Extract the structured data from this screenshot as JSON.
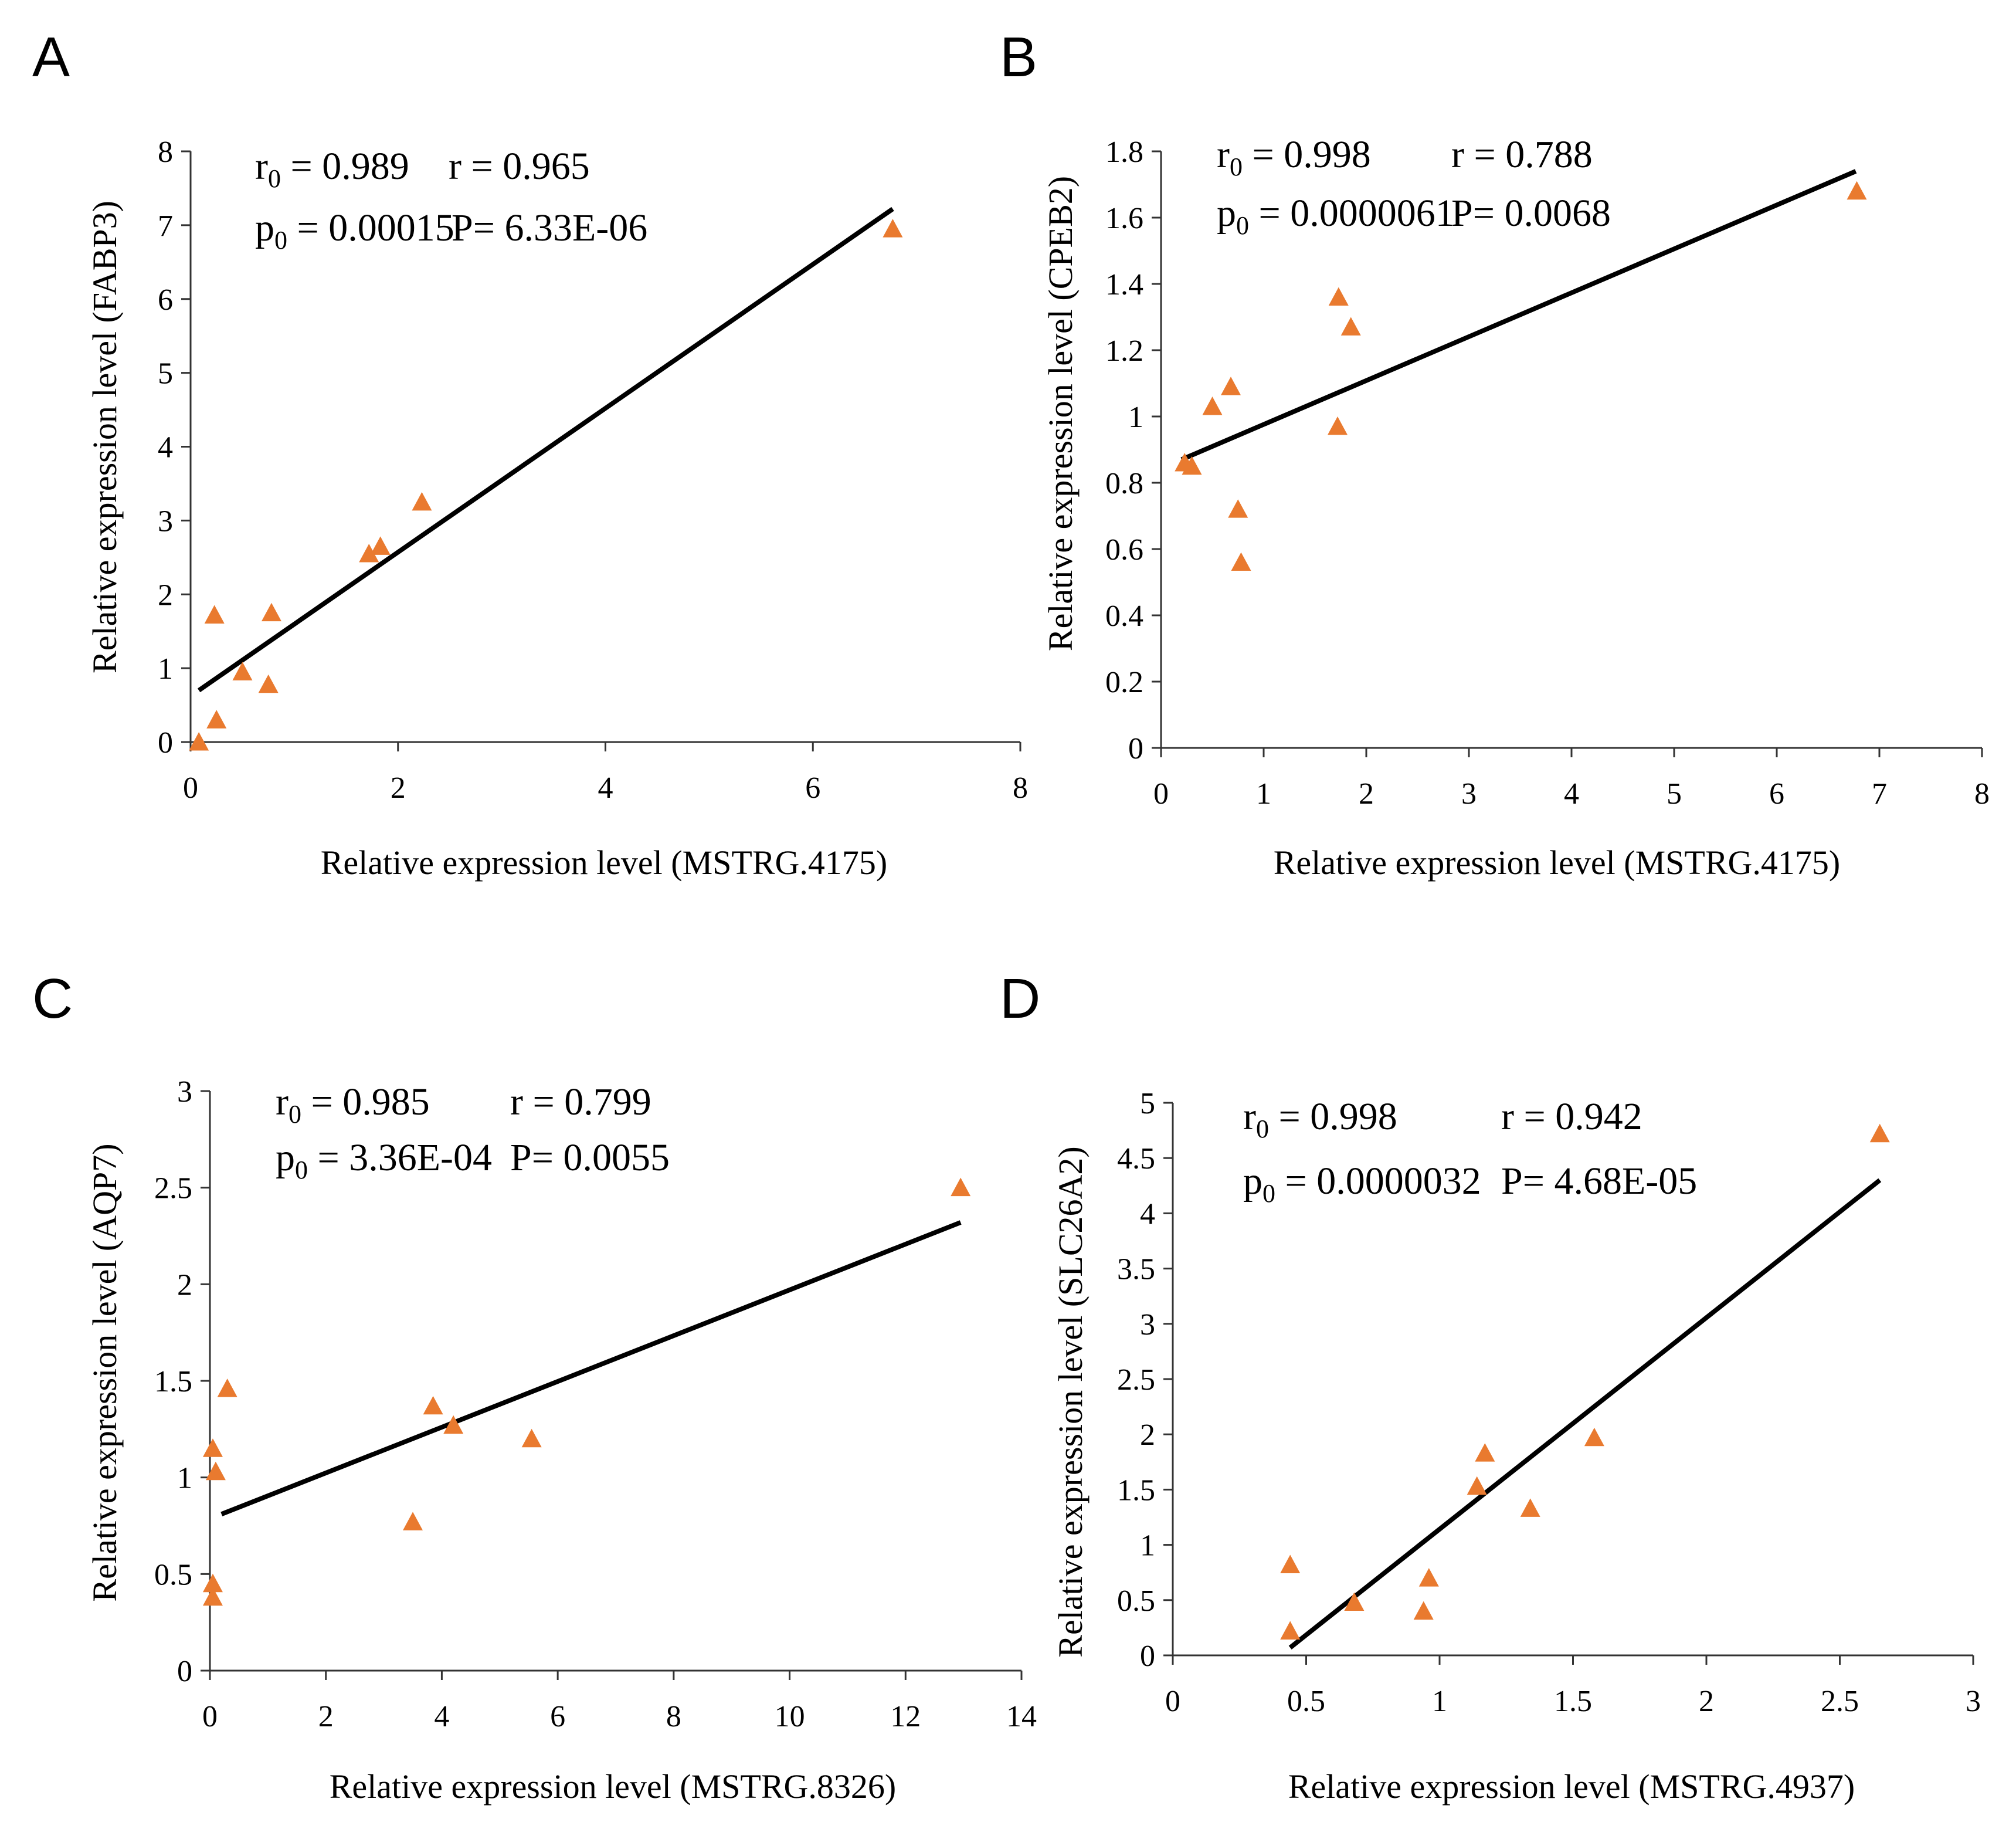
{
  "colors": {
    "marker": "#e97a2f",
    "fit_line": "#000000",
    "axis": "#333333"
  },
  "chart_data": [
    {
      "panel": "A",
      "type": "scatter",
      "xlabel": "Relative expression level (MSTRG.4175)",
      "ylabel": "Relative expression level (FABP3)",
      "xlim": [
        0,
        8
      ],
      "ylim": [
        0,
        8
      ],
      "xticks": [
        0,
        2,
        4,
        6,
        8
      ],
      "yticks": [
        0,
        1,
        2,
        3,
        4,
        5,
        6,
        7,
        8
      ],
      "stats": {
        "r0": "0.989",
        "r": "0.965",
        "p0": "0.00015",
        "P": "6.33E-06"
      },
      "points": [
        [
          0.08,
          0.0
        ],
        [
          0.25,
          0.3
        ],
        [
          0.23,
          1.72
        ],
        [
          0.5,
          0.95
        ],
        [
          0.75,
          0.78
        ],
        [
          0.78,
          1.75
        ],
        [
          1.72,
          2.55
        ],
        [
          1.83,
          2.65
        ],
        [
          2.23,
          3.25
        ],
        [
          6.77,
          6.95
        ]
      ],
      "fit": [
        [
          0.08,
          0.7
        ],
        [
          6.77,
          7.22
        ]
      ]
    },
    {
      "panel": "B",
      "type": "scatter",
      "xlabel": "Relative expression level (MSTRG.4175)",
      "ylabel": "Relative expression level (CPEB2)",
      "xlim": [
        0,
        8
      ],
      "ylim": [
        0,
        1.8
      ],
      "xticks": [
        0,
        1,
        2,
        3,
        4,
        5,
        6,
        7,
        8
      ],
      "yticks": [
        0,
        0.2,
        0.4,
        0.6,
        0.8,
        1,
        1.2,
        1.4,
        1.6,
        1.8
      ],
      "stats": {
        "r0": "0.998",
        "r": "0.788",
        "p0": "0.0000061",
        "P": "0.0068"
      },
      "points": [
        [
          0.23,
          0.86
        ],
        [
          0.3,
          0.85
        ],
        [
          0.5,
          1.03
        ],
        [
          0.68,
          1.09
        ],
        [
          0.75,
          0.72
        ],
        [
          0.78,
          0.56
        ],
        [
          1.72,
          0.97
        ],
        [
          1.73,
          1.36
        ],
        [
          1.85,
          1.27
        ],
        [
          6.78,
          1.68
        ]
      ],
      "fit": [
        [
          0.2,
          0.87
        ],
        [
          6.77,
          1.74
        ]
      ]
    },
    {
      "panel": "C",
      "type": "scatter",
      "xlabel": "Relative expression level (MSTRG.8326)",
      "ylabel": "Relative expression level (AQP7)",
      "xlim": [
        0,
        14
      ],
      "ylim": [
        0,
        3
      ],
      "xticks": [
        0,
        2,
        4,
        6,
        8,
        10,
        12,
        14
      ],
      "yticks": [
        0,
        0.5,
        1,
        1.5,
        2,
        2.5,
        3
      ],
      "stats": {
        "r0": "0.985",
        "r": "0.799",
        "p0": "3.36E-04",
        "P": "0.0055"
      },
      "points": [
        [
          0.05,
          0.38
        ],
        [
          0.05,
          0.45
        ],
        [
          0.05,
          1.15
        ],
        [
          0.1,
          1.03
        ],
        [
          0.3,
          1.46
        ],
        [
          3.5,
          0.77
        ],
        [
          3.85,
          1.37
        ],
        [
          4.2,
          1.27
        ],
        [
          5.55,
          1.2
        ],
        [
          12.95,
          2.5
        ]
      ],
      "fit": [
        [
          0.2,
          0.81
        ],
        [
          12.95,
          2.32
        ]
      ]
    },
    {
      "panel": "D",
      "type": "scatter",
      "xlabel": "Relative expression level (MSTRG.4937)",
      "ylabel": "Relative expression level (SLC26A2)",
      "xlim": [
        0,
        3
      ],
      "ylim": [
        0,
        5
      ],
      "xticks": [
        0,
        0.5,
        1,
        1.5,
        2,
        2.5,
        3
      ],
      "yticks": [
        0,
        0.5,
        1,
        1.5,
        2,
        2.5,
        3,
        3.5,
        4,
        4.5,
        5
      ],
      "stats": {
        "r0": "0.998",
        "r": "0.942",
        "p0": "0.0000032",
        "P": "4.68E-05"
      },
      "points": [
        [
          0.44,
          0.22
        ],
        [
          0.44,
          0.82
        ],
        [
          0.68,
          0.48
        ],
        [
          0.94,
          0.4
        ],
        [
          0.96,
          0.7
        ],
        [
          1.14,
          1.53
        ],
        [
          1.17,
          1.83
        ],
        [
          1.34,
          1.33
        ],
        [
          1.58,
          1.97
        ],
        [
          2.65,
          4.72
        ]
      ],
      "fit": [
        [
          0.44,
          0.07
        ],
        [
          2.65,
          4.3
        ]
      ]
    }
  ]
}
